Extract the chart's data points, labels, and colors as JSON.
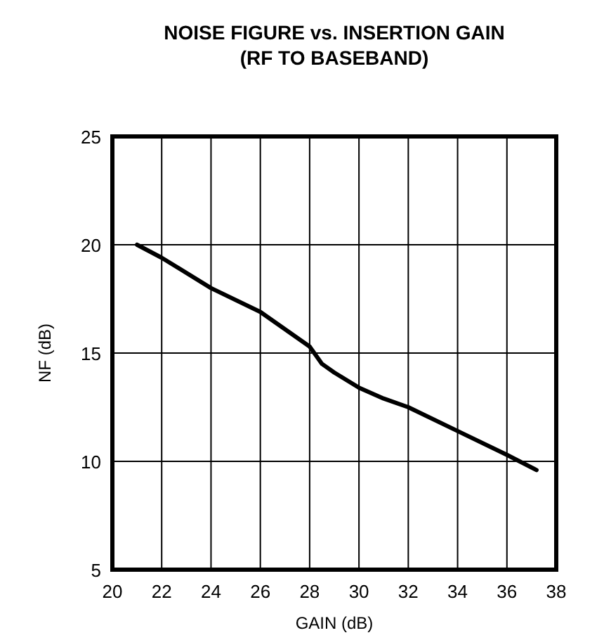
{
  "chart_data": {
    "type": "line",
    "title": "NOISE FIGURE vs. INSERTION GAIN",
    "subtitle": "(RF TO BASEBAND)",
    "xlabel": "GAIN (dB)",
    "ylabel": "NF (dB)",
    "x": [
      21,
      22,
      24,
      26,
      28,
      28.5,
      29,
      30,
      31,
      32,
      34,
      36,
      37.2
    ],
    "series": [
      {
        "color": "#000000",
        "values": [
          20,
          19.4,
          18,
          16.9,
          15.3,
          14.5,
          14.1,
          13.4,
          12.9,
          12.5,
          11.4,
          10.3,
          9.6
        ]
      }
    ],
    "xlim": [
      20,
      38
    ],
    "xticks": [
      20,
      22,
      24,
      26,
      28,
      30,
      32,
      34,
      36,
      38
    ],
    "ylim": [
      5,
      25
    ],
    "yticks": [
      5,
      10,
      15,
      20,
      25
    ],
    "grid": true,
    "marker": "none",
    "line_style": "solid"
  }
}
